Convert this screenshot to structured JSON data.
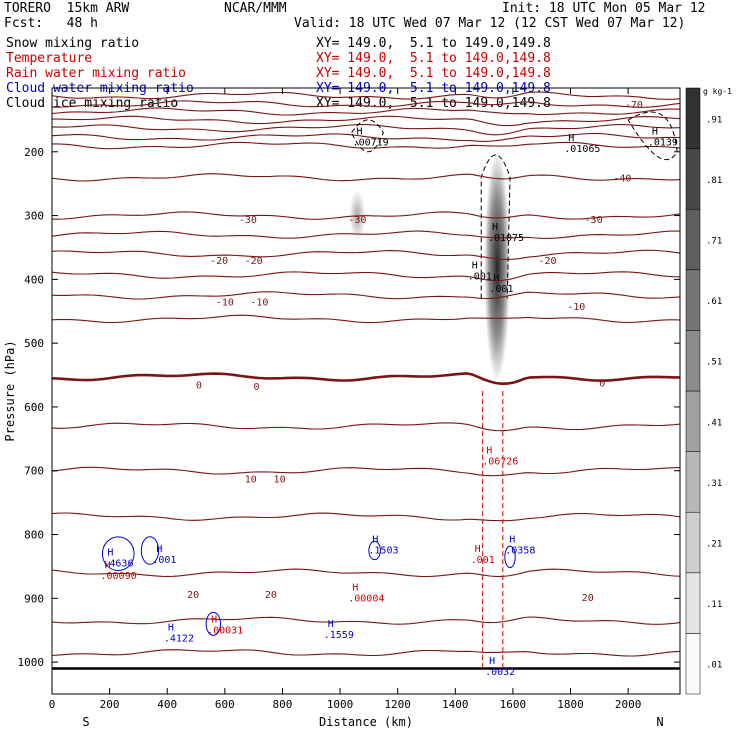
{
  "header": {
    "model_label": "TORERO  15km ARW",
    "center_label": "NCAR/MMM",
    "init_label": "Init: 18 UTC Mon 05 Mar 12",
    "fcst_label": "Fcst:   48 h",
    "valid_label": "Valid: 18 UTC Wed 07 Mar 12 (12 CST Wed 07 Mar 12)",
    "colors": {
      "black": "#000000",
      "red": "#cc0000",
      "blue": "#0000cc"
    },
    "fields": [
      {
        "name": "Snow mixing ratio",
        "xy": "XY= 149.0,  5.1 to 149.0,149.8",
        "color": "black"
      },
      {
        "name": "Temperature",
        "xy": "XY= 149.0,  5.1 to 149.0,149.8",
        "color": "red"
      },
      {
        "name": "Rain water mixing ratio",
        "xy": "XY= 149.0,  5.1 to 149.0,149.8",
        "color": "red"
      },
      {
        "name": "Cloud water mixing ratio",
        "xy": "XY= 149.0,  5.1 to 149.0,149.8",
        "color": "blue"
      },
      {
        "name": "Cloud ice mixing ratio",
        "xy": "XY= 149.0,  5.1 to 149.0,149.8",
        "color": "black"
      }
    ]
  },
  "chart_data": {
    "type": "cross-section",
    "xlabel": "Distance (km)",
    "ylabel": "Pressure (hPa)",
    "xlim": [
      0,
      2180
    ],
    "ylim": [
      1050,
      100
    ],
    "x_ticks": [
      0,
      200,
      400,
      600,
      800,
      1000,
      1200,
      1400,
      1600,
      1800,
      2000
    ],
    "y_ticks": [
      200,
      300,
      400,
      500,
      600,
      700,
      800,
      900,
      1000
    ],
    "end_labels": {
      "left": "S",
      "right": "N"
    },
    "colorbar": {
      "unit": "g kg-1",
      "labels": [
        ".01",
        ".11",
        ".21",
        ".31",
        ".41",
        ".51",
        ".61",
        ".71",
        ".81",
        ".91"
      ],
      "levels": [
        0.01,
        0.11,
        0.21,
        0.31,
        0.41,
        0.51,
        0.61,
        0.71,
        0.81,
        0.91
      ]
    },
    "temperature_contours": [
      {
        "level": -70,
        "base_p": 112
      },
      {
        "level": -65,
        "base_p": 125
      },
      {
        "level": -60,
        "base_p": 137
      },
      {
        "level": -55,
        "base_p": 150
      },
      {
        "level": -50,
        "base_p": 163
      },
      {
        "level": -45,
        "base_p": 177
      },
      {
        "level": -40,
        "base_p": 190
      },
      {
        "level": -35,
        "base_p": 240
      },
      {
        "level": -30,
        "base_p": 300
      },
      {
        "level": -25,
        "base_p": 330
      },
      {
        "level": -20,
        "base_p": 360
      },
      {
        "level": -15,
        "base_p": 393
      },
      {
        "level": -10,
        "base_p": 425
      },
      {
        "level": -5,
        "base_p": 462
      },
      {
        "level": 0,
        "base_p": 553
      },
      {
        "level": 5,
        "base_p": 630
      },
      {
        "level": 10,
        "base_p": 700
      },
      {
        "level": 15,
        "base_p": 772
      },
      {
        "level": 20,
        "base_p": 860
      },
      {
        "level": 25,
        "base_p": 935
      },
      {
        "level": 30,
        "base_p": 985
      }
    ],
    "temperature_labels": [
      {
        "text": "-70",
        "x": 2020,
        "p": 125
      },
      {
        "text": "-40",
        "x": 1980,
        "p": 240
      },
      {
        "text": "-30",
        "x": 680,
        "p": 305
      },
      {
        "text": "-30",
        "x": 1060,
        "p": 305
      },
      {
        "text": "-30",
        "x": 1880,
        "p": 305
      },
      {
        "text": "-20",
        "x": 580,
        "p": 370
      },
      {
        "text": "-20",
        "x": 700,
        "p": 370
      },
      {
        "text": "-20",
        "x": 1720,
        "p": 370
      },
      {
        "text": "-10",
        "x": 600,
        "p": 435
      },
      {
        "text": "-10",
        "x": 720,
        "p": 435
      },
      {
        "text": "-10",
        "x": 1820,
        "p": 442
      },
      {
        "text": "0",
        "x": 510,
        "p": 565
      },
      {
        "text": "0",
        "x": 710,
        "p": 567
      },
      {
        "text": "0",
        "x": 1910,
        "p": 562
      },
      {
        "text": "10",
        "x": 690,
        "p": 712
      },
      {
        "text": "10",
        "x": 790,
        "p": 712
      },
      {
        "text": "20",
        "x": 490,
        "p": 893
      },
      {
        "text": "20",
        "x": 760,
        "p": 893
      },
      {
        "text": "20",
        "x": 1860,
        "p": 898
      }
    ],
    "snow_blobs": [
      {
        "x": 1060,
        "p_top": 260,
        "p_bot": 340,
        "half_width_km": 28,
        "max": 0.3
      },
      {
        "x": 1545,
        "p_top": 200,
        "p_bot": 560,
        "half_width_km": 45,
        "max": 0.85
      }
    ],
    "max_labels": [
      {
        "text": ".00719",
        "x": 1085,
        "p": 190,
        "color": "black"
      },
      {
        "text": ".01065",
        "x": 1820,
        "p": 200,
        "color": "black"
      },
      {
        "text": ".0139",
        "x": 2110,
        "p": 190,
        "color": "black"
      },
      {
        "text": ".01075",
        "x": 1555,
        "p": 340,
        "color": "black"
      },
      {
        "text": ".001",
        "x": 1485,
        "p": 400,
        "color": "black"
      },
      {
        "text": ".001",
        "x": 1560,
        "p": 420,
        "color": "black"
      },
      {
        "text": ".06726",
        "x": 1535,
        "p": 690,
        "color": "red"
      },
      {
        "text": ".001",
        "x": 1495,
        "p": 845,
        "color": "red"
      },
      {
        "text": ".00090",
        "x": 210,
        "p": 870,
        "color": "red"
      },
      {
        "text": ".00004",
        "x": 1070,
        "p": 905,
        "color": "red"
      },
      {
        "text": ".00031",
        "x": 580,
        "p": 955,
        "color": "red"
      },
      {
        "text": ".4636",
        "x": 220,
        "p": 850,
        "color": "blue"
      },
      {
        "text": ".001",
        "x": 390,
        "p": 845,
        "color": "blue"
      },
      {
        "text": ".1503",
        "x": 1140,
        "p": 830,
        "color": "blue"
      },
      {
        "text": ".0358",
        "x": 1615,
        "p": 830,
        "color": "blue"
      },
      {
        "text": ".4122",
        "x": 430,
        "p": 968,
        "color": "blue"
      },
      {
        "text": ".1559",
        "x": 985,
        "p": 962,
        "color": "blue"
      },
      {
        "text": ".0032",
        "x": 1545,
        "p": 1020,
        "color": "blue"
      }
    ]
  }
}
